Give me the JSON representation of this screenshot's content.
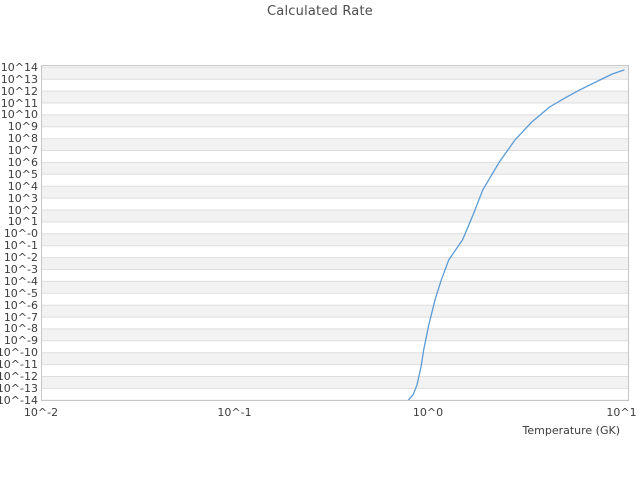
{
  "chart": {
    "title": "Calculated Rate",
    "xlabel": "Temperature (GK)"
  },
  "chart_data": {
    "type": "line",
    "title": "Calculated Rate",
    "xlabel": "Temperature (GK)",
    "ylabel": "",
    "x_scale": "log",
    "y_scale": "log",
    "xlim_log10": [
      -2,
      1.04
    ],
    "ylim_log10": [
      -14,
      14.2
    ],
    "x_tick_labels": [
      "10^-2",
      "10^-1",
      "10^0",
      "10^1"
    ],
    "x_tick_log10": [
      -2,
      -1,
      0,
      1
    ],
    "y_tick_labels": [
      "10^14",
      "10^13",
      "10^12",
      "10^11",
      "10^10",
      "10^9",
      "10^8",
      "10^7",
      "10^6",
      "10^5",
      "10^4",
      "10^3",
      "10^2",
      "10^1",
      "10^-0",
      "10^-1",
      "10^-2",
      "10^-3",
      "10^-4",
      "10^-5",
      "10^-6",
      "10^-7",
      "10^-8",
      "10^-9",
      "10^-10",
      "10^-11",
      "10^-12",
      "10^-13",
      "10^-14"
    ],
    "y_tick_log10": [
      14,
      13,
      12,
      11,
      10,
      9,
      8,
      7,
      6,
      5,
      4,
      3,
      2,
      1,
      0,
      -1,
      -2,
      -3,
      -4,
      -5,
      -6,
      -7,
      -8,
      -9,
      -10,
      -11,
      -12,
      -13,
      -14
    ],
    "grid": "horizontal-gridlines-with-alternating-row-bands",
    "legend": "none",
    "series": [
      {
        "name": "calculated-rate",
        "color": "#5b9bd5",
        "points_T_GK_vs_log10_rate": [
          [
            0.79,
            -14.0
          ],
          [
            0.84,
            -13.5
          ],
          [
            0.877,
            -12.7
          ],
          [
            0.92,
            -11.2
          ],
          [
            0.95,
            -9.75
          ],
          [
            1.01,
            -7.65
          ],
          [
            1.09,
            -5.5
          ],
          [
            1.17,
            -3.9
          ],
          [
            1.28,
            -2.2
          ],
          [
            1.51,
            -0.5
          ],
          [
            1.71,
            1.6
          ],
          [
            1.92,
            3.7
          ],
          [
            2.33,
            6.0
          ],
          [
            2.82,
            7.9
          ],
          [
            3.44,
            9.4
          ],
          [
            4.25,
            10.66
          ],
          [
            5.08,
            11.4
          ],
          [
            6.08,
            12.1
          ],
          [
            7.73,
            12.93
          ],
          [
            8.96,
            13.44
          ],
          [
            10.3,
            13.77
          ]
        ]
      }
    ]
  },
  "colors": {
    "background": "#ffffff",
    "band": "#f2f2f2",
    "gridline": "#dedede",
    "border": "#c6c6c6",
    "text": "#3d3d3d",
    "line": "#5b9bd5"
  }
}
